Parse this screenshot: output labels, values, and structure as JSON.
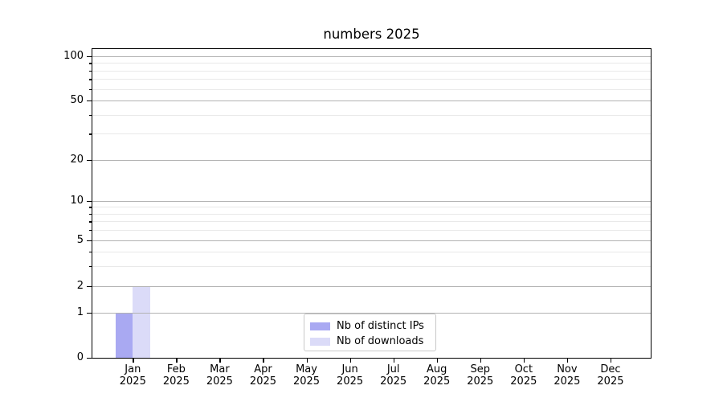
{
  "chart_data": {
    "type": "bar",
    "title": "numbers 2025",
    "categories": [
      "Jan",
      "Feb",
      "Mar",
      "Apr",
      "May",
      "Jun",
      "Jul",
      "Aug",
      "Sep",
      "Oct",
      "Nov",
      "Dec"
    ],
    "x_tick_year": "2025",
    "series": [
      {
        "name": "Nb of distinct IPs",
        "color": "#a9a9f2",
        "values": [
          1,
          0,
          0,
          0,
          0,
          0,
          0,
          0,
          0,
          0,
          0,
          0
        ]
      },
      {
        "name": "Nb of downloads",
        "color": "#dbdbf8",
        "values": [
          2,
          0,
          0,
          0,
          0,
          0,
          0,
          0,
          0,
          0,
          0,
          0
        ]
      }
    ],
    "yscale": "symlog",
    "ylim": [
      0,
      113
    ],
    "y_major_ticks": [
      0,
      1,
      2,
      5,
      10,
      20,
      50,
      100
    ],
    "y_minor_ticks": [
      3,
      4,
      6,
      7,
      8,
      9,
      30,
      40,
      60,
      70,
      80,
      90
    ],
    "xlabel": "",
    "ylabel": "",
    "grid": "horizontal major+minor",
    "legend_position": "lower center inside"
  },
  "colors": {
    "major_grid": "#b2b2b2",
    "minor_grid": "#e9e9e9",
    "spine": "#000000"
  }
}
